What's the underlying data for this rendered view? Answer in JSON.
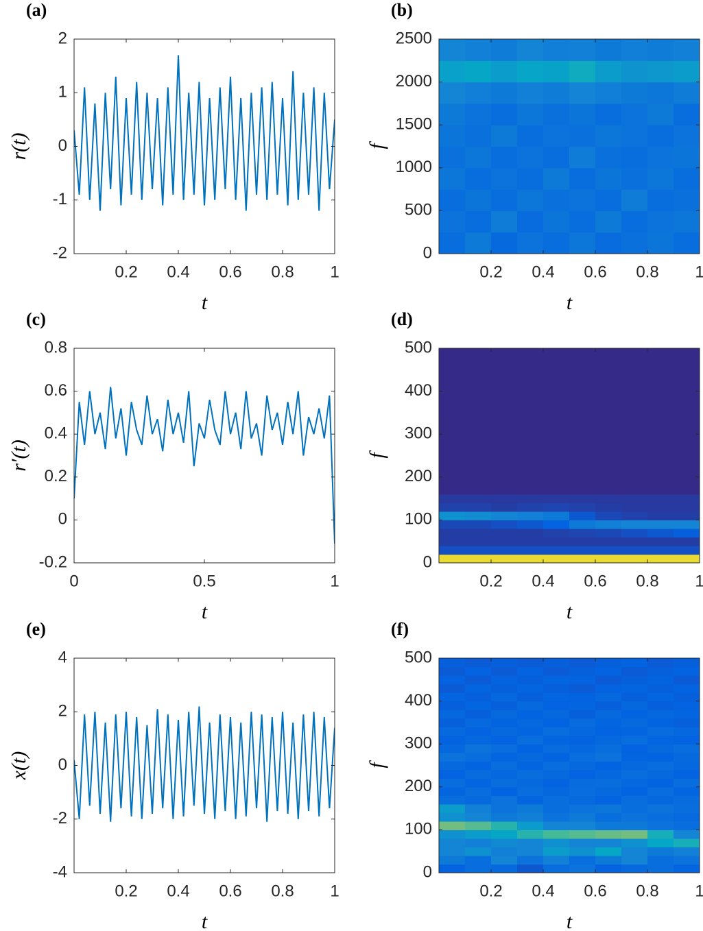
{
  "chart_data": [
    {
      "type": "line",
      "label": "(a)",
      "xlabel": "t",
      "ylabel": "r(t)",
      "color": "#0072bd",
      "xlim": [
        0,
        1
      ],
      "xticks": [
        0.2,
        0.4,
        0.6,
        0.8,
        1
      ],
      "ylim": [
        -2,
        2
      ],
      "yticks": [
        -2,
        -1,
        0,
        1,
        2
      ],
      "x": [
        0,
        0.02,
        0.04,
        0.06,
        0.08,
        0.1,
        0.12,
        0.14,
        0.16,
        0.18,
        0.2,
        0.22,
        0.24,
        0.26,
        0.28,
        0.3,
        0.32,
        0.34,
        0.36,
        0.38,
        0.4,
        0.42,
        0.44,
        0.46,
        0.48,
        0.5,
        0.52,
        0.54,
        0.56,
        0.58,
        0.6,
        0.62,
        0.64,
        0.66,
        0.68,
        0.7,
        0.72,
        0.74,
        0.76,
        0.78,
        0.8,
        0.82,
        0.84,
        0.86,
        0.88,
        0.9,
        0.92,
        0.94,
        0.96,
        0.98,
        1
      ],
      "values": [
        0.3,
        -0.9,
        1.1,
        -1.0,
        0.8,
        -1.2,
        1.0,
        -0.8,
        1.3,
        -1.1,
        0.9,
        -0.9,
        1.2,
        -1.0,
        1.0,
        -0.8,
        0.9,
        -1.1,
        1.1,
        -0.9,
        1.7,
        -1.0,
        1.0,
        -0.9,
        1.2,
        -1.1,
        0.9,
        -1.0,
        1.1,
        -0.8,
        1.3,
        -1.0,
        0.9,
        -1.2,
        1.0,
        -0.9,
        1.1,
        -1.0,
        1.2,
        -0.9,
        0.9,
        -1.1,
        1.4,
        -1.0,
        1.0,
        -0.9,
        1.1,
        -1.2,
        1.0,
        -0.8,
        0.5
      ]
    },
    {
      "type": "heatmap",
      "label": "(b)",
      "xlabel": "t",
      "ylabel": "f",
      "colormap": "parula",
      "clim": [
        0,
        1
      ],
      "xlim": [
        0,
        1
      ],
      "xticks": [
        0.2,
        0.4,
        0.6,
        0.8,
        1
      ],
      "ylim": [
        0,
        2500
      ],
      "yticks": [
        0,
        500,
        1000,
        1500,
        2000,
        2500
      ],
      "x": [
        0.05,
        0.15,
        0.25,
        0.35,
        0.45,
        0.55,
        0.65,
        0.75,
        0.85,
        0.95
      ],
      "y": [
        125,
        375,
        625,
        875,
        1125,
        1375,
        1625,
        1875,
        2125,
        2375
      ],
      "z": [
        [
          0.2,
          0.25,
          0.18,
          0.22,
          0.2,
          0.24,
          0.19,
          0.21,
          0.23,
          0.2
        ],
        [
          0.22,
          0.2,
          0.26,
          0.19,
          0.23,
          0.2,
          0.25,
          0.2,
          0.22,
          0.24
        ],
        [
          0.2,
          0.23,
          0.2,
          0.24,
          0.21,
          0.22,
          0.2,
          0.26,
          0.2,
          0.21
        ],
        [
          0.24,
          0.2,
          0.22,
          0.2,
          0.25,
          0.2,
          0.23,
          0.21,
          0.24,
          0.2
        ],
        [
          0.21,
          0.24,
          0.2,
          0.22,
          0.2,
          0.26,
          0.21,
          0.2,
          0.22,
          0.23
        ],
        [
          0.23,
          0.21,
          0.25,
          0.2,
          0.22,
          0.21,
          0.24,
          0.22,
          0.2,
          0.22
        ],
        [
          0.25,
          0.22,
          0.2,
          0.24,
          0.21,
          0.23,
          0.2,
          0.22,
          0.25,
          0.2
        ],
        [
          0.3,
          0.27,
          0.25,
          0.28,
          0.26,
          0.3,
          0.27,
          0.25,
          0.24,
          0.26
        ],
        [
          0.42,
          0.45,
          0.4,
          0.44,
          0.43,
          0.48,
          0.4,
          0.36,
          0.38,
          0.4
        ],
        [
          0.3,
          0.28,
          0.26,
          0.3,
          0.27,
          0.28,
          0.25,
          0.27,
          0.26,
          0.28
        ]
      ]
    },
    {
      "type": "line",
      "label": "(c)",
      "xlabel": "t",
      "ylabel": "r′(t)",
      "color": "#0072bd",
      "xlim": [
        0,
        1
      ],
      "xticks": [
        0,
        0.5,
        1
      ],
      "ylim": [
        -0.2,
        0.8
      ],
      "yticks": [
        -0.2,
        0,
        0.2,
        0.4,
        0.6,
        0.8
      ],
      "x": [
        0,
        0.02,
        0.04,
        0.06,
        0.08,
        0.1,
        0.12,
        0.14,
        0.16,
        0.18,
        0.2,
        0.22,
        0.24,
        0.26,
        0.28,
        0.3,
        0.32,
        0.34,
        0.36,
        0.38,
        0.4,
        0.42,
        0.44,
        0.46,
        0.48,
        0.5,
        0.52,
        0.54,
        0.56,
        0.58,
        0.6,
        0.62,
        0.64,
        0.66,
        0.68,
        0.7,
        0.72,
        0.74,
        0.76,
        0.78,
        0.8,
        0.82,
        0.84,
        0.86,
        0.88,
        0.9,
        0.92,
        0.94,
        0.96,
        0.98,
        1
      ],
      "values": [
        0.1,
        0.55,
        0.35,
        0.6,
        0.4,
        0.5,
        0.33,
        0.62,
        0.38,
        0.52,
        0.3,
        0.55,
        0.42,
        0.35,
        0.58,
        0.4,
        0.47,
        0.32,
        0.56,
        0.4,
        0.5,
        0.36,
        0.6,
        0.25,
        0.45,
        0.38,
        0.56,
        0.42,
        0.35,
        0.6,
        0.4,
        0.5,
        0.33,
        0.6,
        0.38,
        0.45,
        0.3,
        0.58,
        0.42,
        0.5,
        0.35,
        0.55,
        0.4,
        0.6,
        0.3,
        0.48,
        0.4,
        0.52,
        0.38,
        0.58,
        -0.11
      ]
    },
    {
      "type": "heatmap",
      "label": "(d)",
      "xlabel": "t",
      "ylabel": "f",
      "colormap": "parula",
      "clim": [
        0,
        1
      ],
      "xlim": [
        0,
        1
      ],
      "xticks": [
        0.2,
        0.4,
        0.6,
        0.8,
        1
      ],
      "ylim": [
        0,
        500
      ],
      "yticks": [
        0,
        100,
        200,
        300,
        400,
        500
      ],
      "x": [
        0.05,
        0.15,
        0.25,
        0.35,
        0.45,
        0.55,
        0.65,
        0.75,
        0.85,
        0.95
      ],
      "y": [
        10,
        30,
        50,
        70,
        90,
        110,
        130,
        150,
        170,
        190,
        210,
        230,
        250,
        270,
        290,
        310,
        330,
        350,
        370,
        390,
        410,
        430,
        450,
        470,
        490
      ],
      "z": [
        [
          0.95,
          0.95,
          0.95,
          0.95,
          0.95,
          0.95,
          0.95,
          0.95,
          0.95,
          0.95
        ],
        [
          0.1,
          0.1,
          0.1,
          0.1,
          0.1,
          0.1,
          0.1,
          0.1,
          0.1,
          0.1
        ],
        [
          0.05,
          0.05,
          0.05,
          0.05,
          0.05,
          0.05,
          0.05,
          0.05,
          0.05,
          0.05
        ],
        [
          0.05,
          0.05,
          0.05,
          0.05,
          0.06,
          0.07,
          0.08,
          0.1,
          0.12,
          0.14
        ],
        [
          0.08,
          0.08,
          0.1,
          0.12,
          0.15,
          0.25,
          0.28,
          0.3,
          0.3,
          0.3
        ],
        [
          0.35,
          0.33,
          0.3,
          0.28,
          0.25,
          0.12,
          0.08,
          0.06,
          0.05,
          0.05
        ],
        [
          0.06,
          0.06,
          0.05,
          0.06,
          0.07,
          0.06,
          0.05,
          0.04,
          0.04,
          0.04
        ],
        [
          0.04,
          0.04,
          0.04,
          0.04,
          0.04,
          0.04,
          0.04,
          0.04,
          0.04,
          0.04
        ],
        [
          0,
          0,
          0,
          0,
          0,
          0,
          0,
          0,
          0,
          0
        ],
        [
          0,
          0,
          0,
          0,
          0,
          0,
          0,
          0,
          0,
          0
        ],
        [
          0,
          0,
          0,
          0,
          0,
          0,
          0,
          0,
          0,
          0
        ],
        [
          0,
          0,
          0,
          0,
          0,
          0,
          0,
          0,
          0,
          0
        ],
        [
          0,
          0,
          0,
          0,
          0,
          0,
          0,
          0,
          0,
          0
        ],
        [
          0,
          0,
          0,
          0,
          0,
          0,
          0,
          0,
          0,
          0
        ],
        [
          0,
          0,
          0,
          0,
          0,
          0,
          0,
          0,
          0,
          0
        ],
        [
          0,
          0,
          0,
          0,
          0,
          0,
          0,
          0,
          0,
          0
        ],
        [
          0,
          0,
          0,
          0,
          0,
          0,
          0,
          0,
          0,
          0
        ],
        [
          0,
          0,
          0,
          0,
          0,
          0,
          0,
          0,
          0,
          0
        ],
        [
          0,
          0,
          0,
          0,
          0,
          0,
          0,
          0,
          0,
          0
        ],
        [
          0,
          0,
          0,
          0,
          0,
          0,
          0,
          0,
          0,
          0
        ],
        [
          0,
          0,
          0,
          0,
          0,
          0,
          0,
          0,
          0,
          0
        ],
        [
          0,
          0,
          0,
          0,
          0,
          0,
          0,
          0,
          0,
          0
        ],
        [
          0,
          0,
          0,
          0,
          0,
          0,
          0,
          0,
          0,
          0
        ],
        [
          0,
          0,
          0,
          0,
          0,
          0,
          0,
          0,
          0,
          0
        ],
        [
          0,
          0,
          0,
          0,
          0,
          0,
          0,
          0,
          0,
          0
        ]
      ]
    },
    {
      "type": "line",
      "label": "(e)",
      "xlabel": "t",
      "ylabel": "x(t)",
      "color": "#0072bd",
      "xlim": [
        0,
        1
      ],
      "xticks": [
        0.2,
        0.4,
        0.6,
        0.8,
        1
      ],
      "ylim": [
        -4,
        4
      ],
      "yticks": [
        -4,
        -2,
        0,
        2,
        4
      ],
      "x": [
        0,
        0.02,
        0.04,
        0.06,
        0.08,
        0.1,
        0.12,
        0.14,
        0.16,
        0.18,
        0.2,
        0.22,
        0.24,
        0.26,
        0.28,
        0.3,
        0.32,
        0.34,
        0.36,
        0.38,
        0.4,
        0.42,
        0.44,
        0.46,
        0.48,
        0.5,
        0.52,
        0.54,
        0.56,
        0.58,
        0.6,
        0.62,
        0.64,
        0.66,
        0.68,
        0.7,
        0.72,
        0.74,
        0.76,
        0.78,
        0.8,
        0.82,
        0.84,
        0.86,
        0.88,
        0.9,
        0.92,
        0.94,
        0.96,
        0.98,
        1
      ],
      "values": [
        0.2,
        -2.0,
        1.9,
        -1.5,
        2.0,
        -1.8,
        1.6,
        -2.1,
        1.9,
        -1.6,
        2.0,
        -1.9,
        1.8,
        -2.0,
        1.5,
        -1.8,
        2.1,
        -1.6,
        1.9,
        -2.0,
        1.7,
        -1.9,
        2.0,
        -1.5,
        2.2,
        -1.8,
        1.6,
        -2.0,
        1.9,
        -1.7,
        1.8,
        -2.0,
        1.6,
        -1.9,
        2.0,
        -1.6,
        1.9,
        -2.1,
        1.8,
        -1.7,
        2.0,
        -1.8,
        1.6,
        -2.0,
        1.9,
        -1.7,
        2.0,
        -1.9,
        1.8,
        -1.6,
        1.4
      ]
    },
    {
      "type": "heatmap",
      "label": "(f)",
      "xlabel": "t",
      "ylabel": "f",
      "colormap": "parula",
      "clim": [
        0,
        1
      ],
      "xlim": [
        0,
        1
      ],
      "xticks": [
        0.2,
        0.4,
        0.6,
        0.8,
        1
      ],
      "ylim": [
        0,
        500
      ],
      "yticks": [
        0,
        100,
        200,
        300,
        400,
        500
      ],
      "x": [
        0.05,
        0.15,
        0.25,
        0.35,
        0.45,
        0.55,
        0.65,
        0.75,
        0.85,
        0.95
      ],
      "y": [
        10,
        30,
        50,
        70,
        90,
        110,
        130,
        150,
        170,
        190,
        210,
        230,
        250,
        270,
        290,
        310,
        330,
        350,
        370,
        390,
        410,
        430,
        450,
        470,
        490
      ],
      "z": [
        [
          0.15,
          0.2,
          0.18,
          0.12,
          0.2,
          0.22,
          0.15,
          0.18,
          0.2,
          0.16
        ],
        [
          0.25,
          0.2,
          0.3,
          0.22,
          0.28,
          0.2,
          0.25,
          0.3,
          0.2,
          0.22
        ],
        [
          0.3,
          0.35,
          0.28,
          0.3,
          0.4,
          0.35,
          0.45,
          0.3,
          0.25,
          0.28
        ],
        [
          0.3,
          0.28,
          0.32,
          0.3,
          0.35,
          0.3,
          0.3,
          0.35,
          0.45,
          0.5
        ],
        [
          0.35,
          0.4,
          0.45,
          0.55,
          0.62,
          0.65,
          0.68,
          0.7,
          0.5,
          0.3
        ],
        [
          0.7,
          0.65,
          0.55,
          0.4,
          0.3,
          0.3,
          0.25,
          0.25,
          0.22,
          0.2
        ],
        [
          0.35,
          0.3,
          0.25,
          0.28,
          0.22,
          0.25,
          0.2,
          0.22,
          0.2,
          0.18
        ],
        [
          0.4,
          0.28,
          0.22,
          0.25,
          0.2,
          0.22,
          0.24,
          0.2,
          0.22,
          0.2
        ],
        [
          0.2,
          0.18,
          0.22,
          0.16,
          0.2,
          0.18,
          0.15,
          0.2,
          0.17,
          0.19
        ],
        [
          0.16,
          0.2,
          0.15,
          0.2,
          0.17,
          0.2,
          0.18,
          0.15,
          0.2,
          0.16
        ],
        [
          0.2,
          0.16,
          0.2,
          0.18,
          0.15,
          0.19,
          0.2,
          0.17,
          0.15,
          0.2
        ],
        [
          0.15,
          0.19,
          0.17,
          0.2,
          0.18,
          0.15,
          0.17,
          0.2,
          0.18,
          0.15
        ],
        [
          0.18,
          0.15,
          0.2,
          0.16,
          0.2,
          0.18,
          0.15,
          0.18,
          0.2,
          0.17
        ],
        [
          0.22,
          0.2,
          0.16,
          0.18,
          0.15,
          0.2,
          0.22,
          0.16,
          0.15,
          0.18
        ],
        [
          0.17,
          0.22,
          0.2,
          0.15,
          0.19,
          0.17,
          0.2,
          0.15,
          0.18,
          0.2
        ],
        [
          0.15,
          0.17,
          0.15,
          0.2,
          0.16,
          0.15,
          0.17,
          0.2,
          0.16,
          0.15
        ],
        [
          0.18,
          0.15,
          0.18,
          0.16,
          0.2,
          0.17,
          0.15,
          0.16,
          0.19,
          0.17
        ],
        [
          0.14,
          0.18,
          0.15,
          0.17,
          0.15,
          0.19,
          0.16,
          0.18,
          0.15,
          0.14
        ],
        [
          0.17,
          0.14,
          0.18,
          0.15,
          0.17,
          0.14,
          0.18,
          0.15,
          0.17,
          0.16
        ],
        [
          0.14,
          0.16,
          0.14,
          0.18,
          0.15,
          0.16,
          0.14,
          0.17,
          0.14,
          0.15
        ],
        [
          0.16,
          0.14,
          0.17,
          0.14,
          0.16,
          0.15,
          0.17,
          0.14,
          0.16,
          0.14
        ],
        [
          0.13,
          0.16,
          0.14,
          0.16,
          0.14,
          0.13,
          0.15,
          0.16,
          0.14,
          0.15
        ],
        [
          0.15,
          0.13,
          0.15,
          0.14,
          0.16,
          0.15,
          0.13,
          0.14,
          0.15,
          0.13
        ],
        [
          0.13,
          0.15,
          0.13,
          0.15,
          0.13,
          0.14,
          0.15,
          0.13,
          0.14,
          0.15
        ],
        [
          0.14,
          0.13,
          0.14,
          0.13,
          0.14,
          0.13,
          0.14,
          0.15,
          0.13,
          0.14
        ]
      ]
    }
  ]
}
